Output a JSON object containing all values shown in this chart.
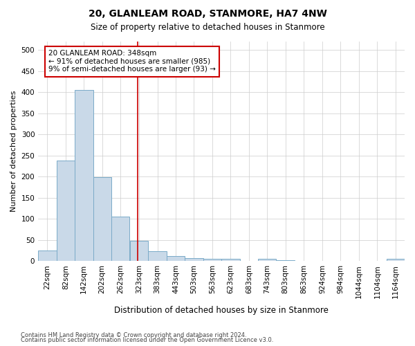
{
  "title": "20, GLANLEAM ROAD, STANMORE, HA7 4NW",
  "subtitle": "Size of property relative to detached houses in Stanmore",
  "xlabel": "Distribution of detached houses by size in Stanmore",
  "ylabel": "Number of detached properties",
  "bar_color": "#c9d9e8",
  "bar_edge_color": "#7aaac8",
  "background_color": "#ffffff",
  "grid_color": "#cccccc",
  "annotation_box_color": "#cc0000",
  "vline_color": "#cc0000",
  "vline_x": 348,
  "bin_starts": [
    22,
    82,
    142,
    202,
    262,
    323,
    383,
    443,
    503,
    563,
    623,
    683,
    743,
    803,
    863,
    924,
    984,
    1044,
    1104,
    1164
  ],
  "bin_width": 60,
  "categories": [
    "22sqm",
    "82sqm",
    "142sqm",
    "202sqm",
    "262sqm",
    "323sqm",
    "383sqm",
    "443sqm",
    "503sqm",
    "563sqm",
    "623sqm",
    "683sqm",
    "743sqm",
    "803sqm",
    "863sqm",
    "924sqm",
    "984sqm",
    "1044sqm",
    "1104sqm",
    "1164sqm"
  ],
  "values": [
    25,
    238,
    405,
    199,
    106,
    48,
    23,
    12,
    7,
    5,
    5,
    0,
    5,
    2,
    1,
    0,
    0,
    0,
    0,
    5
  ],
  "xlim_left": 22,
  "xlim_right": 1224,
  "ylim": [
    0,
    520
  ],
  "yticks": [
    0,
    50,
    100,
    150,
    200,
    250,
    300,
    350,
    400,
    450,
    500
  ],
  "annotation_text": "20 GLANLEAM ROAD: 348sqm\n← 91% of detached houses are smaller (985)\n9% of semi-detached houses are larger (93) →",
  "footnote1": "Contains HM Land Registry data © Crown copyright and database right 2024.",
  "footnote2": "Contains public sector information licensed under the Open Government Licence v3.0."
}
